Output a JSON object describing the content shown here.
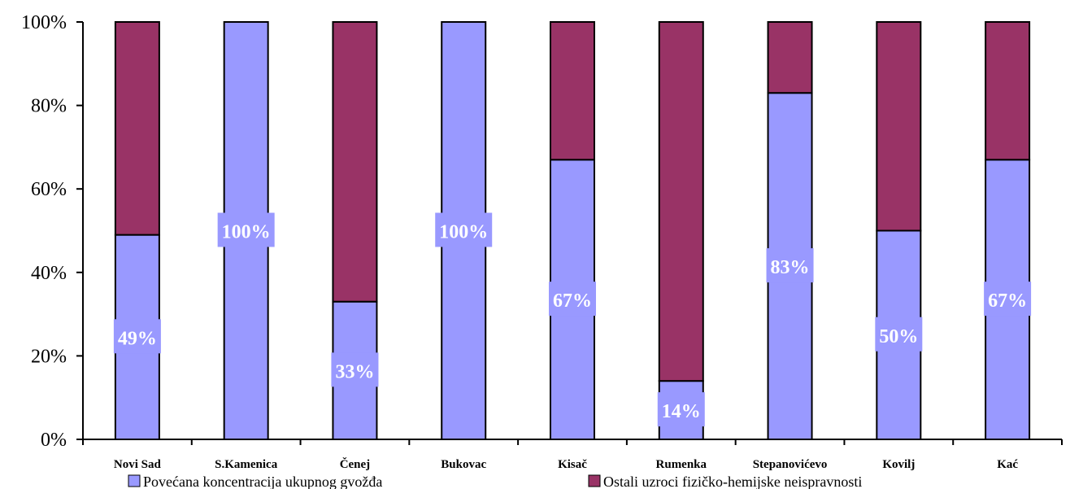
{
  "colors": {
    "series1": "#9999FF",
    "series2": "#993366",
    "axis": "#000000",
    "label_text": "#FFFFFF"
  },
  "chart_data": {
    "type": "bar",
    "stacked": true,
    "percent": true,
    "title": "",
    "xlabel": "",
    "ylabel": "",
    "ylim": [
      0,
      100
    ],
    "yticks": [
      "0%",
      "20%",
      "40%",
      "60%",
      "80%",
      "100%"
    ],
    "grid": false,
    "legend_position": "bottom",
    "categories": [
      "Novi Sad",
      "S.Kamenica",
      "Čenej",
      "Bukovac",
      "Kisač",
      "Rumenka",
      "Stepanovićevo",
      "Kovilj",
      "Kać"
    ],
    "series": [
      {
        "name": "Povećana koncentracija ukupnog gvožđa",
        "values": [
          49,
          100,
          33,
          100,
          67,
          14,
          83,
          50,
          67
        ],
        "labels": [
          "49%",
          "100%",
          "33%",
          "100%",
          "67%",
          "14%",
          "83%",
          "50%",
          "67%"
        ]
      },
      {
        "name": "Ostali uzroci fizičko-hemijske neispravnosti",
        "values": [
          51,
          0,
          67,
          0,
          33,
          86,
          17,
          50,
          33
        ]
      }
    ]
  }
}
